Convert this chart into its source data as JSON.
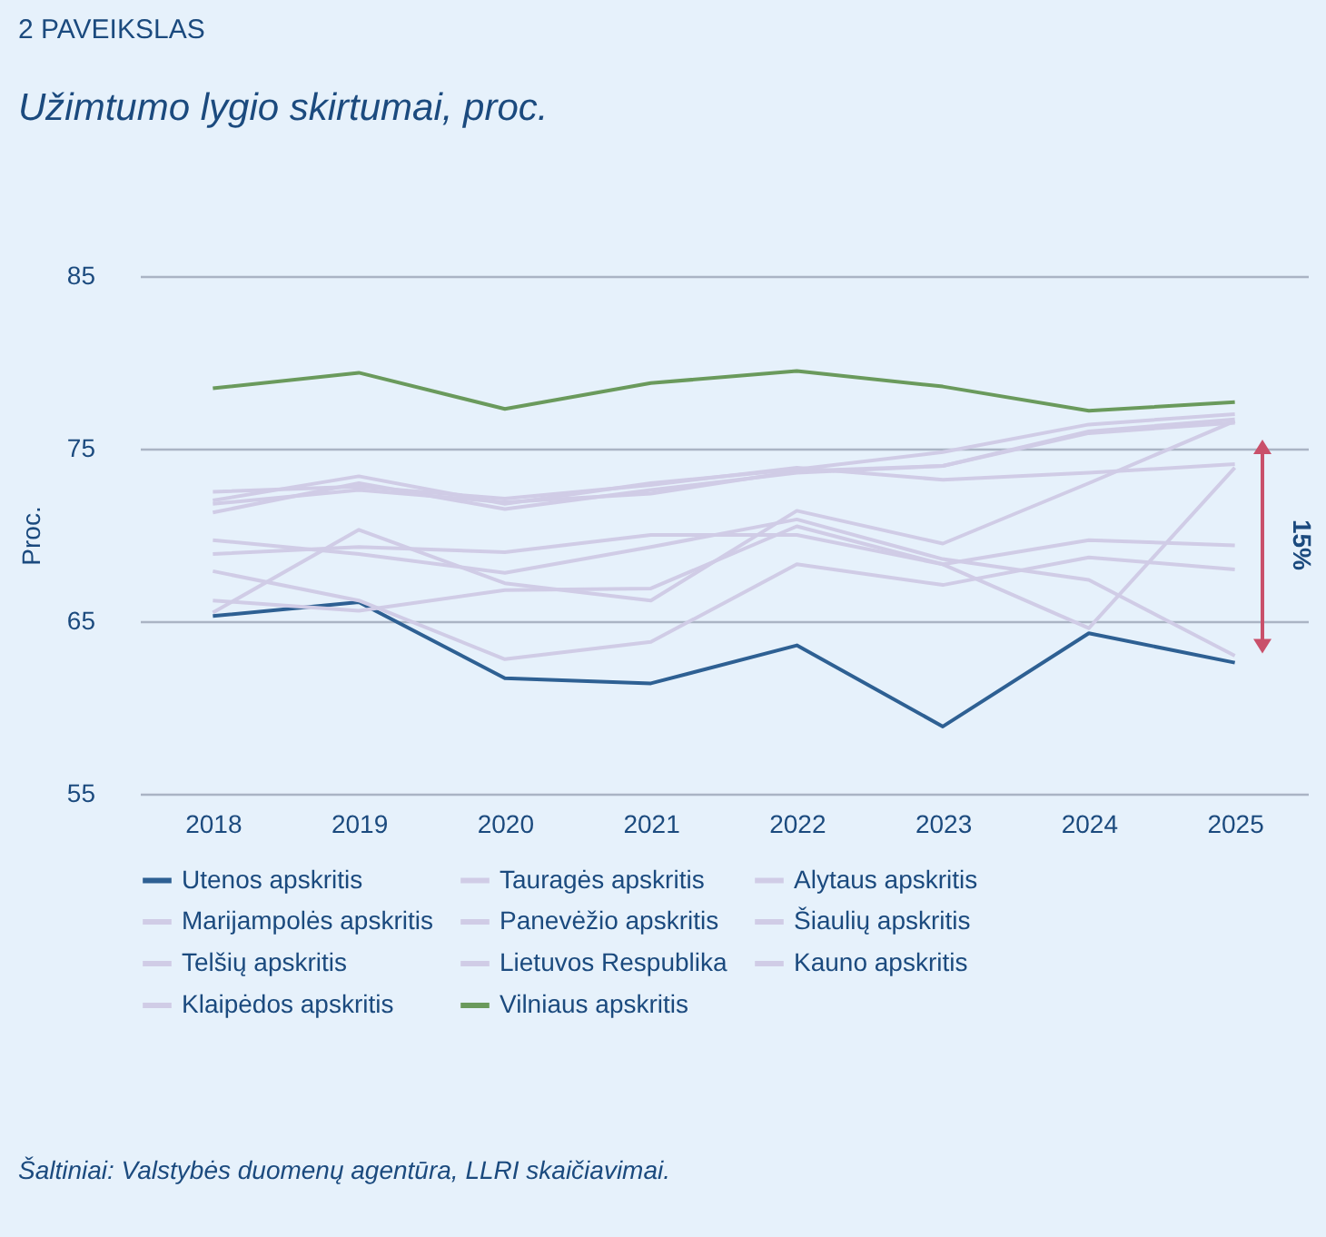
{
  "chart_data": {
    "type": "line",
    "title": "Užimtumo lygio skirtumai, proc.",
    "ylabel": "Proc.",
    "annotations": [
      "2 PAVEIKSLAS",
      "15%",
      "Šaltiniai: Valstybės duomenų agentūra, LLRI skaičiavimai."
    ],
    "categories": [
      "2018",
      "2019",
      "2020",
      "2021",
      "2022",
      "2023",
      "2024",
      "2025"
    ],
    "series": [
      {
        "name": "Utenos apskritis",
        "color": "#2e6093",
        "values": [
          65.3,
          66.1,
          61.7,
          61.4,
          63.6,
          58.9,
          64.3,
          62.6
        ]
      },
      {
        "name": "Tauragės apskritis",
        "color": "#d0cce6",
        "values": [
          65.5,
          70.3,
          67.2,
          66.2,
          71.4,
          69.5,
          73.0,
          76.6
        ]
      },
      {
        "name": "Alytaus apskritis",
        "color": "#d0cce6",
        "values": [
          66.2,
          65.6,
          66.8,
          66.9,
          70.5,
          68.3,
          64.6,
          73.9
        ]
      },
      {
        "name": "Marijampolės apskritis",
        "color": "#d0cce6",
        "values": [
          67.9,
          66.2,
          62.8,
          63.8,
          68.3,
          67.1,
          68.7,
          68.0
        ]
      },
      {
        "name": "Panevėžio apskritis",
        "color": "#d0cce6",
        "values": [
          69.7,
          68.9,
          67.8,
          69.3,
          70.9,
          68.6,
          67.4,
          63.0
        ]
      },
      {
        "name": "Šiaulių apskritis",
        "color": "#d0cce6",
        "values": [
          68.9,
          69.3,
          69.0,
          70.0,
          70.0,
          68.3,
          69.7,
          69.4
        ]
      },
      {
        "name": "Telšių apskritis",
        "color": "#d0cce6",
        "values": [
          71.3,
          73.0,
          71.5,
          72.6,
          73.6,
          74.0,
          75.9,
          76.5
        ]
      },
      {
        "name": "Lietuvos Respublika",
        "color": "#d0cce6",
        "values": [
          72.5,
          72.8,
          72.1,
          72.9,
          73.9,
          73.2,
          73.6,
          74.1
        ]
      },
      {
        "name": "Kauno apskritis",
        "color": "#d0cce6",
        "values": [
          71.8,
          72.6,
          71.9,
          72.4,
          73.7,
          74.0,
          76.0,
          76.7
        ]
      },
      {
        "name": "Klaipėdos apskritis",
        "color": "#d0cce6",
        "values": [
          72.0,
          73.4,
          71.8,
          73.0,
          73.8,
          74.8,
          76.4,
          77.0
        ]
      },
      {
        "name": "Vilniaus apskritis",
        "color": "#6a9a5c",
        "values": [
          78.5,
          79.4,
          77.3,
          78.8,
          79.5,
          78.6,
          77.2,
          77.7
        ]
      }
    ],
    "ylim": [
      55,
      85
    ],
    "yticks": [
      55,
      65,
      75,
      85
    ],
    "grid": "y",
    "legend": "bottom"
  }
}
